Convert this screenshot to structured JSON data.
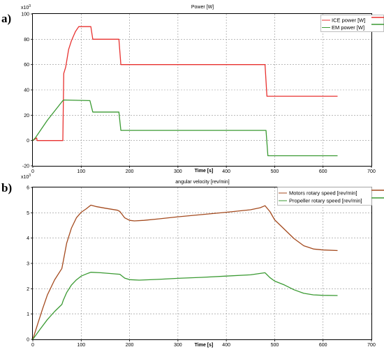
{
  "chart_data": [
    {
      "panel": "a)",
      "type": "line",
      "title": "Power [W]",
      "scale_label": "x10",
      "scale_exp": "3",
      "xlabel": "Time [s]",
      "ylabel": "",
      "xlim": [
        0,
        700
      ],
      "ylim": [
        -20,
        100
      ],
      "xticks": [
        0,
        100,
        200,
        300,
        400,
        500,
        600,
        700
      ],
      "yticks": [
        -20,
        0,
        20,
        40,
        60,
        80,
        100
      ],
      "grid": true,
      "legend_position": "top-right",
      "series": [
        {
          "name": "ICE power [W]",
          "color": "#e8312f",
          "points": [
            [
              0,
              0
            ],
            [
              4,
              1
            ],
            [
              8,
              2
            ],
            [
              9,
              0
            ],
            [
              12,
              0
            ],
            [
              62,
              0
            ],
            [
              64,
              53
            ],
            [
              68,
              58
            ],
            [
              74,
              72
            ],
            [
              80,
              79
            ],
            [
              88,
              86
            ],
            [
              95,
              90
            ],
            [
              100,
              90
            ],
            [
              118,
              90
            ],
            [
              120,
              90
            ],
            [
              124,
              80
            ],
            [
              130,
              80
            ],
            [
              178,
              80
            ],
            [
              182,
              60
            ],
            [
              190,
              60
            ],
            [
              480,
              60
            ],
            [
              484,
              35
            ],
            [
              490,
              35
            ],
            [
              630,
              35
            ]
          ]
        },
        {
          "name": "EM power [W]",
          "color": "#3a9a32",
          "points": [
            [
              0,
              0
            ],
            [
              5,
              2
            ],
            [
              30,
              16
            ],
            [
              62,
              31.5
            ],
            [
              65,
              32
            ],
            [
              118,
              31.5
            ],
            [
              124,
              22.5
            ],
            [
              130,
              22.5
            ],
            [
              178,
              22.5
            ],
            [
              182,
              8
            ],
            [
              190,
              8
            ],
            [
              482,
              8
            ],
            [
              486,
              -12
            ],
            [
              490,
              -12
            ],
            [
              630,
              -12
            ]
          ]
        }
      ]
    },
    {
      "panel": "b)",
      "type": "line",
      "title": "angular velocity [rev/min]",
      "scale_label": "x10",
      "scale_exp": "3",
      "xlabel": "Time [s]",
      "ylabel": "",
      "xlim": [
        0,
        700
      ],
      "ylim": [
        0,
        6
      ],
      "xticks": [
        0,
        100,
        200,
        300,
        400,
        500,
        600,
        700
      ],
      "yticks": [
        0,
        1,
        2,
        3,
        4,
        5,
        6
      ],
      "grid": true,
      "legend_position": "top-right",
      "series": [
        {
          "name": "Motors rotary speed [rev/min]",
          "color": "#a44a1e",
          "points": [
            [
              0,
              0
            ],
            [
              10,
              0.6
            ],
            [
              20,
              1.2
            ],
            [
              30,
              1.75
            ],
            [
              45,
              2.35
            ],
            [
              60,
              2.8
            ],
            [
              63,
              3.1
            ],
            [
              70,
              3.8
            ],
            [
              80,
              4.4
            ],
            [
              90,
              4.8
            ],
            [
              100,
              5.02
            ],
            [
              110,
              5.15
            ],
            [
              120,
              5.3
            ],
            [
              130,
              5.25
            ],
            [
              150,
              5.18
            ],
            [
              175,
              5.1
            ],
            [
              180,
              5.05
            ],
            [
              190,
              4.8
            ],
            [
              200,
              4.7
            ],
            [
              210,
              4.68
            ],
            [
              230,
              4.7
            ],
            [
              260,
              4.76
            ],
            [
              300,
              4.84
            ],
            [
              350,
              4.93
            ],
            [
              400,
              5.02
            ],
            [
              450,
              5.12
            ],
            [
              470,
              5.2
            ],
            [
              480,
              5.28
            ],
            [
              490,
              5.05
            ],
            [
              500,
              4.72
            ],
            [
              520,
              4.35
            ],
            [
              540,
              3.98
            ],
            [
              560,
              3.7
            ],
            [
              580,
              3.57
            ],
            [
              600,
              3.53
            ],
            [
              630,
              3.51
            ]
          ]
        },
        {
          "name": "Propeller rotary speed  [rev/min]",
          "color": "#3a9a32",
          "points": [
            [
              0,
              0
            ],
            [
              15,
              0.4
            ],
            [
              30,
              0.78
            ],
            [
              45,
              1.1
            ],
            [
              60,
              1.38
            ],
            [
              63,
              1.55
            ],
            [
              70,
              1.85
            ],
            [
              80,
              2.15
            ],
            [
              90,
              2.35
            ],
            [
              100,
              2.5
            ],
            [
              110,
              2.58
            ],
            [
              120,
              2.65
            ],
            [
              140,
              2.63
            ],
            [
              160,
              2.6
            ],
            [
              180,
              2.57
            ],
            [
              190,
              2.42
            ],
            [
              200,
              2.36
            ],
            [
              220,
              2.34
            ],
            [
              260,
              2.37
            ],
            [
              300,
              2.41
            ],
            [
              350,
              2.45
            ],
            [
              400,
              2.5
            ],
            [
              450,
              2.55
            ],
            [
              480,
              2.63
            ],
            [
              490,
              2.44
            ],
            [
              500,
              2.3
            ],
            [
              520,
              2.15
            ],
            [
              540,
              1.96
            ],
            [
              560,
              1.82
            ],
            [
              580,
              1.76
            ],
            [
              600,
              1.74
            ],
            [
              630,
              1.73
            ]
          ]
        }
      ]
    }
  ]
}
